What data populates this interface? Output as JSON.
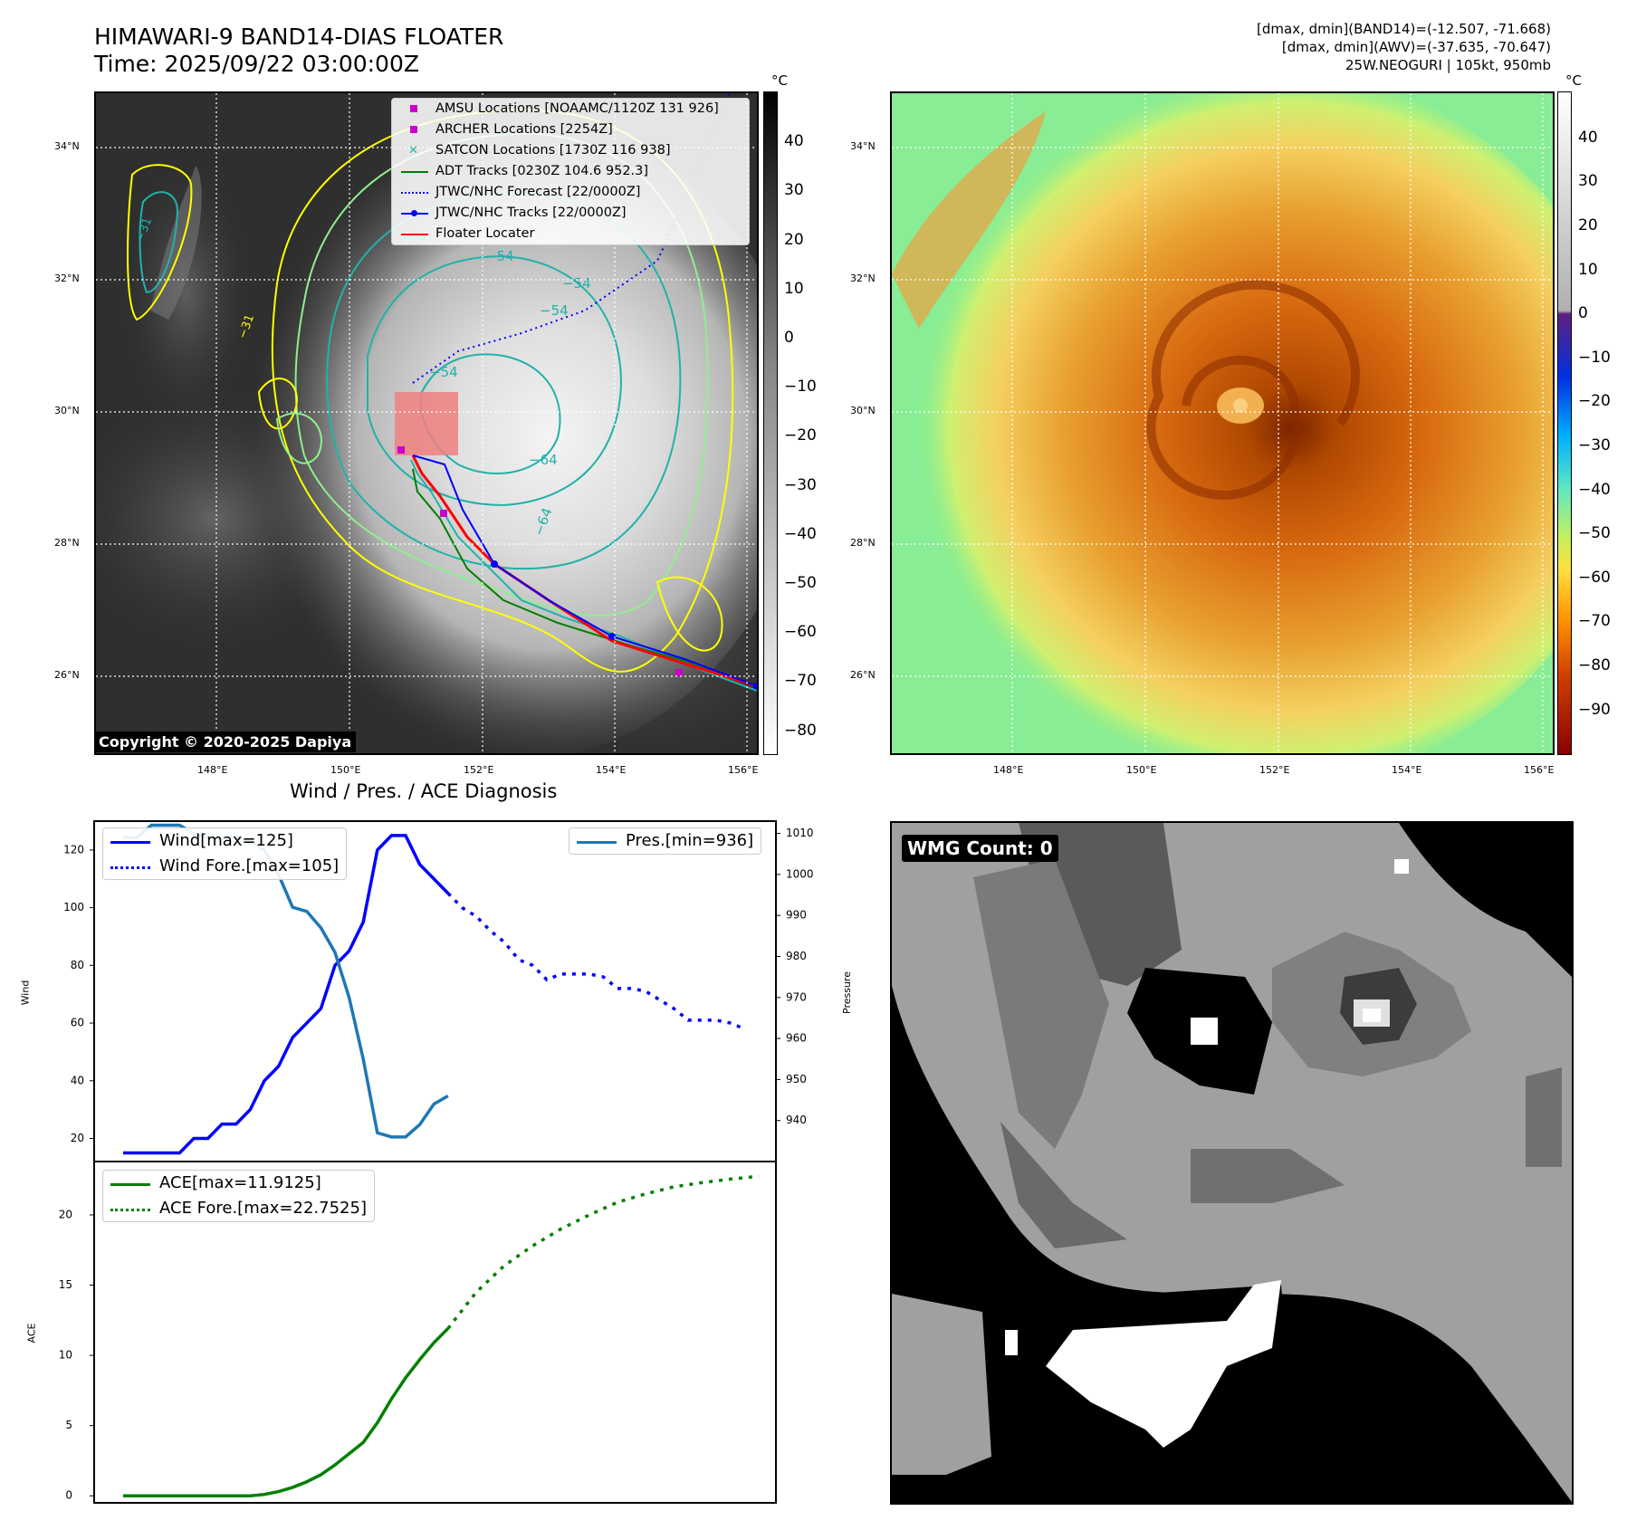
{
  "header": {
    "title_line1": "HIMAWARI-9 BAND14-DIAS FLOATER",
    "title_line2": "Time: 2025/09/22 03:00:00Z",
    "info_line1": "[dmax, dmin](BAND14)=(-12.507, -71.668)",
    "info_line2": "[dmax, dmin](AWV)=(-37.635, -70.647)",
    "info_line3": "25W.NEOGURI | 105kt, 950mb"
  },
  "map_axes": {
    "lat_labels": [
      "34°N",
      "32°N",
      "30°N",
      "28°N",
      "26°N"
    ],
    "lon_labels": [
      "148°E",
      "150°E",
      "152°E",
      "154°E",
      "156°E"
    ]
  },
  "ir_panel": {
    "colorbar_unit": "°C",
    "colorbar_ticks": [
      "40",
      "30",
      "20",
      "10",
      "0",
      "−10",
      "−20",
      "−30",
      "−40",
      "−50",
      "−60",
      "−70",
      "−80"
    ],
    "contour_labels": [
      "−54",
      "−54",
      "−54",
      "−54",
      "−64",
      "−64",
      "−31",
      "−31"
    ],
    "copyright": "Copyright © 2020-2025 Dapiya",
    "legend": [
      {
        "label": "AMSU Locations [NOAAMC/1120Z 131 926]",
        "symbol": "square",
        "color": "#cc00cc"
      },
      {
        "label": "ARCHER Locations [2254Z]",
        "symbol": "square",
        "color": "#cc00cc"
      },
      {
        "label": "SATCON Locations [1730Z 116 938]",
        "symbol": "x",
        "color": "#20b2aa"
      },
      {
        "label": "ADT Tracks [0230Z 104.6 952.3]",
        "symbol": "line",
        "color": "#008000"
      },
      {
        "label": "JTWC/NHC Forecast [22/0000Z]",
        "symbol": "dotted",
        "color": "#0000ff"
      },
      {
        "label": "JTWC/NHC Tracks [22/0000Z]",
        "symbol": "line-dot",
        "color": "#0000ff"
      },
      {
        "label": "Floater Locater",
        "symbol": "line",
        "color": "#ff0000"
      }
    ]
  },
  "awv_panel": {
    "colorbar_unit": "°C",
    "colorbar_ticks": [
      "40",
      "30",
      "20",
      "10",
      "0",
      "−10",
      "−20",
      "−30",
      "−40",
      "−50",
      "−60",
      "−70",
      "−80",
      "−90"
    ]
  },
  "wmg_panel": {
    "label": "WMG Count: 0"
  },
  "colors": {
    "wind": "#0000ff",
    "pressure": "#1f77b4",
    "ace": "#008000",
    "contour_yellow": "#ffff00",
    "contour_green": "#90ee90",
    "contour_teal": "#20b2aa"
  },
  "chart_data": [
    {
      "type": "line",
      "title": "Wind / Pres. / ACE Diagnosis",
      "ylabel": "Wind",
      "ylabel_right": "Pressure",
      "ylim": [
        12,
        130
      ],
      "ylim_right": [
        930,
        1013
      ],
      "y_ticks": [
        20,
        40,
        60,
        80,
        100,
        120
      ],
      "y_ticks_right": [
        940,
        950,
        960,
        970,
        980,
        990,
        1000,
        1010
      ],
      "series": [
        {
          "name": "Wind[max=125]",
          "style": "solid",
          "axis": "left",
          "x": [
            0,
            1,
            2,
            3,
            4,
            5,
            6,
            7,
            8,
            9,
            10,
            11,
            12,
            13,
            14,
            15,
            16,
            17,
            18,
            19,
            20,
            21,
            22,
            23
          ],
          "values": [
            15,
            15,
            15,
            15,
            15,
            20,
            20,
            25,
            25,
            30,
            40,
            45,
            55,
            60,
            65,
            80,
            85,
            95,
            120,
            125,
            125,
            115,
            110,
            105
          ]
        },
        {
          "name": "Wind Fore.[max=105]",
          "style": "dotted",
          "axis": "left",
          "x": [
            23,
            24,
            25,
            26,
            27,
            28,
            29,
            30,
            31,
            32,
            33,
            34,
            35,
            36,
            37,
            38,
            39,
            40,
            41,
            42,
            43,
            44
          ],
          "values": [
            105,
            100,
            97,
            92,
            88,
            82,
            80,
            75,
            77,
            77,
            77,
            76,
            72,
            72,
            71,
            68,
            65,
            61,
            61,
            61,
            60,
            58
          ]
        },
        {
          "name": "Pres.[min=936]",
          "style": "solid",
          "axis": "right",
          "x": [
            0,
            1,
            2,
            3,
            4,
            5,
            6,
            7,
            8,
            9,
            10,
            11,
            12,
            13,
            14,
            15,
            16,
            17,
            18,
            19,
            20,
            21,
            22,
            23
          ],
          "values": [
            1009,
            1009,
            1012,
            1012,
            1012,
            1010,
            1009,
            1009,
            1009,
            1008,
            1006,
            1000,
            992,
            991,
            987,
            981,
            970,
            955,
            937,
            936,
            936,
            939,
            944,
            946
          ]
        }
      ]
    },
    {
      "type": "line",
      "ylabel": "ACE",
      "ylim": [
        -0.5,
        23.8
      ],
      "y_ticks": [
        0,
        5,
        10,
        15,
        20
      ],
      "series": [
        {
          "name": "ACE[max=11.9125]",
          "style": "solid",
          "x": [
            0,
            2,
            4,
            6,
            8,
            9,
            10,
            11,
            12,
            13,
            14,
            15,
            16,
            17,
            18,
            19,
            20,
            21,
            22,
            23
          ],
          "values": [
            0,
            0,
            0,
            0,
            0,
            0,
            0.1,
            0.3,
            0.6,
            1.0,
            1.5,
            2.2,
            3.0,
            3.8,
            5.2,
            6.9,
            8.4,
            9.7,
            10.9,
            11.9125
          ]
        },
        {
          "name": "ACE Fore.[max=22.7525]",
          "style": "dotted",
          "x": [
            23,
            25,
            27,
            29,
            31,
            33,
            35,
            37,
            39,
            41,
            43,
            45
          ],
          "values": [
            11.9125,
            14.5,
            16.4,
            17.8,
            19.0,
            20.0,
            20.9,
            21.5,
            22.0,
            22.3,
            22.55,
            22.7525
          ]
        }
      ]
    }
  ]
}
